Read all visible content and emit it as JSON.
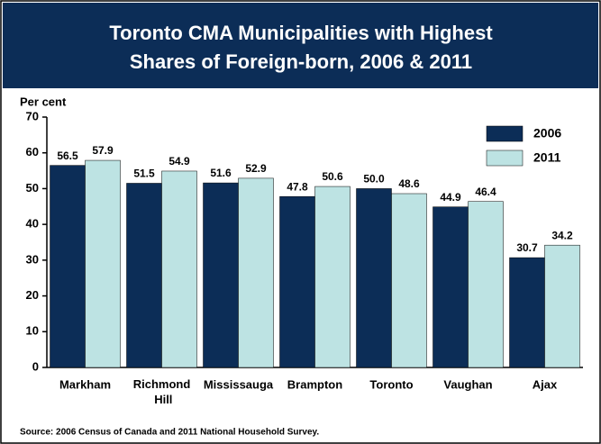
{
  "chart_data": {
    "type": "bar",
    "title": "Toronto CMA Municipalities with Highest",
    "subtitle": "Shares of Foreign-born, 2006 & 2011",
    "y_label": "Per cent",
    "source": "Source: 2006 Census of Canada and 2011 National Household Survey.",
    "categories": [
      "Markham",
      "Richmond Hill",
      "Mississauga",
      "Brampton",
      "Toronto",
      "Vaughan",
      "Ajax"
    ],
    "series": [
      {
        "name": "2006",
        "color": "#0c2d57",
        "values": [
          56.5,
          51.5,
          51.6,
          47.8,
          50.0,
          44.9,
          30.7
        ],
        "value_labels": [
          "56.5",
          "51.5",
          "51.6",
          "47.8",
          "50.0",
          "44.9",
          "30.7"
        ]
      },
      {
        "name": "2011",
        "color": "#bde3e3",
        "values": [
          57.9,
          54.9,
          52.9,
          50.6,
          48.6,
          46.4,
          34.2
        ],
        "value_labels": [
          "57.9",
          "54.9",
          "52.9",
          "50.6",
          "48.6",
          "46.4",
          "34.2"
        ]
      }
    ],
    "ylim": [
      0,
      70
    ],
    "yticks": [
      0,
      10,
      20,
      30,
      40,
      50,
      60,
      70
    ],
    "legend": "upper right"
  }
}
